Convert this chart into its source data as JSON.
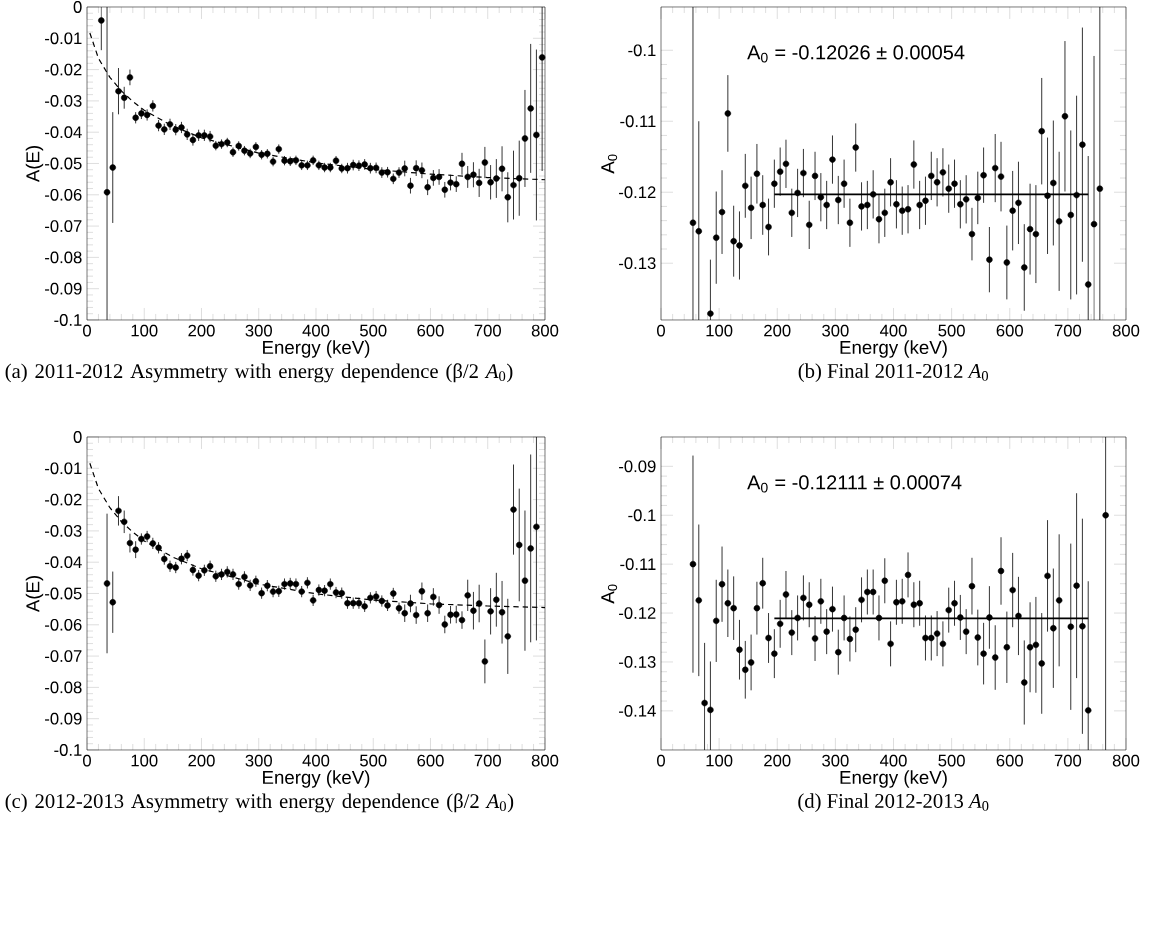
{
  "chart_data": [
    {
      "type": "scatter",
      "title": "(a) 2011-2012 Asymmetry with energy dependence (β/2 *A*$_{0}$)",
      "xlabel": "Energy (keV)",
      "ylabel": "A(E)",
      "xlim": [
        0,
        800
      ],
      "xticks": [
        0,
        100,
        200,
        300,
        400,
        500,
        600,
        700,
        800
      ],
      "ylim": [
        -0.1,
        0
      ],
      "yticks": [
        -0.1,
        -0.09,
        -0.08,
        -0.07,
        -0.06,
        -0.05,
        -0.04,
        -0.03,
        -0.02,
        -0.01,
        0
      ],
      "marker": "circle",
      "series": [
        {
          "type": "scatter",
          "color": "#000000",
          "x": [
            25,
            35,
            45,
            55,
            65,
            75,
            85,
            95,
            105,
            115,
            125,
            135,
            145,
            155,
            165,
            175,
            185,
            195,
            205,
            215,
            225,
            235,
            245,
            255,
            265,
            275,
            285,
            295,
            305,
            315,
            325,
            335,
            345,
            355,
            365,
            375,
            385,
            395,
            405,
            415,
            425,
            435,
            445,
            455,
            465,
            475,
            485,
            495,
            505,
            515,
            525,
            535,
            545,
            555,
            565,
            575,
            585,
            595,
            605,
            615,
            625,
            635,
            645,
            655,
            665,
            675,
            685,
            695,
            705,
            715,
            725,
            735,
            745,
            755,
            765,
            775,
            785,
            795
          ],
          "values": [
            -0.0043,
            -0.0592,
            -0.0513,
            -0.0269,
            -0.029,
            -0.0225,
            -0.0354,
            -0.034,
            -0.0345,
            -0.0316,
            -0.0379,
            -0.0391,
            -0.0375,
            -0.0392,
            -0.0385,
            -0.0407,
            -0.0425,
            -0.041,
            -0.041,
            -0.0414,
            -0.0443,
            -0.0438,
            -0.0433,
            -0.0464,
            -0.0444,
            -0.0459,
            -0.0468,
            -0.0447,
            -0.0472,
            -0.0469,
            -0.0494,
            -0.0454,
            -0.0491,
            -0.0493,
            -0.049,
            -0.0506,
            -0.0506,
            -0.049,
            -0.0506,
            -0.0513,
            -0.0513,
            -0.0491,
            -0.0516,
            -0.0515,
            -0.0505,
            -0.0507,
            -0.0503,
            -0.0515,
            -0.0514,
            -0.0529,
            -0.0528,
            -0.0549,
            -0.0529,
            -0.0516,
            -0.0571,
            -0.0515,
            -0.0522,
            -0.0576,
            -0.0546,
            -0.0543,
            -0.0584,
            -0.0561,
            -0.0566,
            -0.0501,
            -0.0543,
            -0.0536,
            -0.0562,
            -0.0497,
            -0.056,
            -0.0548,
            -0.0517,
            -0.0608,
            -0.0569,
            -0.0547,
            -0.042,
            -0.0324,
            -0.0409,
            -0.0161
          ],
          "errors": [
            [
              -0.0138,
              0
            ],
            [
              -0.1,
              0
            ],
            0.0177,
            0.0074,
            0.0035,
            0.0025,
            0.0018,
            0.0018,
            0.0018,
            0.0018,
            0.0018,
            0.0018,
            0.0018,
            0.0018,
            0.0018,
            0.0018,
            0.0018,
            0.0018,
            0.0018,
            0.0018,
            0.0015,
            0.0015,
            0.0015,
            0.0015,
            0.0015,
            0.0015,
            0.0015,
            0.0015,
            0.0015,
            0.0015,
            0.0015,
            0.0015,
            0.0015,
            0.0015,
            0.0015,
            0.0015,
            0.0015,
            0.0015,
            0.0015,
            0.0015,
            0.0015,
            0.0015,
            0.0015,
            0.0017,
            0.0017,
            0.0017,
            0.0017,
            0.0017,
            0.0017,
            0.0017,
            0.0017,
            0.0017,
            0.0017,
            0.0025,
            0.0025,
            0.0025,
            0.0025,
            0.0025,
            0.0025,
            0.0025,
            0.0025,
            0.0025,
            0.0025,
            0.0035,
            0.0035,
            0.004,
            0.0045,
            0.005,
            0.0055,
            0.0062,
            0.0072,
            0.008,
            0.011,
            0.012,
            0.0155,
            0.0206,
            0.0273,
            [
              -0.0524,
              0
            ]
          ]
        },
        {
          "type": "line",
          "color": "#000000",
          "line_style": "dashed",
          "x": [
            5,
            20,
            40,
            60,
            80,
            100,
            150,
            200,
            300,
            400,
            500,
            600,
            700,
            800
          ],
          "values": [
            -0.0083,
            -0.0164,
            -0.0225,
            -0.0268,
            -0.0302,
            -0.033,
            -0.0381,
            -0.0418,
            -0.0467,
            -0.0498,
            -0.0519,
            -0.0534,
            -0.0545,
            -0.0552
          ],
          "marker": "none"
        }
      ]
    },
    {
      "type": "scatter",
      "title": "(b) Final 2011-2012 *A*$_{0}$",
      "xlabel": "Energy (keV)",
      "ylabel": "A$_{0}$",
      "xlim": [
        0,
        800
      ],
      "xticks": [
        0,
        100,
        200,
        300,
        400,
        500,
        600,
        700,
        800
      ],
      "ylim": [
        -0.138,
        -0.0939
      ],
      "yticks": [
        -0.13,
        -0.12,
        -0.11,
        -0.1
      ],
      "marker": "circle",
      "annotations": [
        "A$_{0}$ = -0.12026 ± 0.00054"
      ],
      "series": [
        {
          "type": "scatter",
          "color": "#000000",
          "x": [
            55,
            65,
            85,
            95,
            105,
            115,
            125,
            135,
            145,
            155,
            165,
            175,
            185,
            195,
            205,
            215,
            225,
            235,
            245,
            255,
            265,
            275,
            285,
            295,
            305,
            315,
            325,
            335,
            345,
            355,
            365,
            375,
            385,
            395,
            405,
            415,
            425,
            435,
            445,
            455,
            465,
            475,
            485,
            495,
            505,
            515,
            525,
            535,
            545,
            555,
            565,
            575,
            585,
            595,
            605,
            615,
            625,
            635,
            645,
            655,
            665,
            675,
            685,
            695,
            705,
            715,
            725,
            735,
            745,
            755
          ],
          "values": [
            -0.1243,
            -0.1255,
            -0.1371,
            -0.1264,
            -0.1228,
            -0.1089,
            -0.1269,
            -0.1275,
            -0.1191,
            -0.1222,
            -0.1174,
            -0.1218,
            -0.1249,
            -0.1188,
            -0.1171,
            -0.116,
            -0.1229,
            -0.1201,
            -0.1173,
            -0.1246,
            -0.1177,
            -0.1207,
            -0.1218,
            -0.1154,
            -0.1211,
            -0.1188,
            -0.1243,
            -0.1137,
            -0.122,
            -0.1218,
            -0.1203,
            -0.1238,
            -0.1229,
            -0.1186,
            -0.1217,
            -0.1226,
            -0.1224,
            -0.1161,
            -0.1218,
            -0.1212,
            -0.1177,
            -0.1186,
            -0.1172,
            -0.1195,
            -0.1188,
            -0.1217,
            -0.121,
            -0.1259,
            -0.1208,
            -0.1176,
            -0.1295,
            -0.1166,
            -0.1178,
            -0.1299,
            -0.1226,
            -0.1215,
            -0.1306,
            -0.1252,
            -0.1259,
            -0.1114,
            -0.1205,
            -0.1187,
            -0.1241,
            -0.1093,
            -0.1232,
            -0.1204,
            -0.1133,
            -0.133,
            -0.1245,
            -0.1195
          ],
          "errors": [
            [
              -0.138,
              -0.0939
            ],
            [
              -0.138,
              -0.11
            ],
            [
              -0.138,
              -0.1295
            ],
            0.0065,
            0.0059,
            0.0054,
            0.005,
            0.0048,
            0.0045,
            0.0044,
            0.0042,
            0.0042,
            0.004,
            0.0034,
            0.0034,
            0.0034,
            0.0034,
            0.0034,
            0.0034,
            0.0034,
            0.0034,
            0.0034,
            0.0034,
            0.0034,
            0.0034,
            0.0034,
            0.0034,
            0.0034,
            0.0034,
            0.0034,
            0.0034,
            0.0034,
            0.0034,
            0.0034,
            0.0034,
            0.0034,
            0.0034,
            0.0034,
            0.0034,
            0.0034,
            0.0034,
            0.0034,
            0.0034,
            0.0034,
            0.0034,
            0.0034,
            0.0034,
            0.0037,
            0.0037,
            0.0039,
            0.0046,
            0.0048,
            0.0049,
            0.0052,
            0.0056,
            0.0058,
            0.0061,
            0.0064,
            0.0069,
            0.0075,
            0.0082,
            0.0088,
            0.0098,
            0.0106,
            0.0119,
            0.014,
            0.0165,
            [
              -0.138,
              -0.1149
            ],
            [
              -0.138,
              -0.1008
            ],
            [
              -0.138,
              -0.0939
            ]
          ]
        },
        {
          "type": "line",
          "color": "#000000",
          "line_style": "solid",
          "x": [
            195,
            735
          ],
          "values": [
            -0.1203,
            -0.1203
          ],
          "marker": "none"
        }
      ]
    },
    {
      "type": "scatter",
      "title": "(c) 2012-2013 Asymmetry with energy dependence (β/2 *A*$_{0}$)",
      "xlabel": "Energy (keV)",
      "ylabel": "A(E)",
      "xlim": [
        0,
        800
      ],
      "xticks": [
        0,
        100,
        200,
        300,
        400,
        500,
        600,
        700,
        800
      ],
      "ylim": [
        -0.1,
        0
      ],
      "yticks": [
        -0.1,
        -0.09,
        -0.08,
        -0.07,
        -0.06,
        -0.05,
        -0.04,
        -0.03,
        -0.02,
        -0.01,
        0
      ],
      "marker": "circle",
      "series": [
        {
          "type": "scatter",
          "color": "#000000",
          "x": [
            35,
            45,
            55,
            65,
            75,
            85,
            95,
            105,
            115,
            125,
            135,
            145,
            155,
            165,
            175,
            185,
            195,
            205,
            215,
            225,
            235,
            245,
            255,
            265,
            275,
            285,
            295,
            305,
            315,
            325,
            335,
            345,
            355,
            365,
            375,
            385,
            395,
            405,
            415,
            425,
            435,
            445,
            455,
            465,
            475,
            485,
            495,
            505,
            515,
            525,
            535,
            545,
            555,
            565,
            575,
            585,
            595,
            605,
            615,
            625,
            635,
            645,
            655,
            665,
            675,
            685,
            695,
            705,
            715,
            725,
            735,
            745,
            755,
            765,
            775,
            785
          ],
          "values": [
            -0.0468,
            -0.0528,
            -0.0236,
            -0.0271,
            -0.0339,
            -0.036,
            -0.0326,
            -0.0318,
            -0.034,
            -0.0354,
            -0.039,
            -0.0413,
            -0.0417,
            -0.0389,
            -0.0379,
            -0.0425,
            -0.0443,
            -0.0426,
            -0.0413,
            -0.0445,
            -0.0439,
            -0.0431,
            -0.0439,
            -0.047,
            -0.0447,
            -0.0474,
            -0.0461,
            -0.0499,
            -0.0475,
            -0.0494,
            -0.0493,
            -0.047,
            -0.0468,
            -0.047,
            -0.0494,
            -0.0466,
            -0.0522,
            -0.0489,
            -0.0491,
            -0.047,
            -0.0497,
            -0.0499,
            -0.0531,
            -0.0531,
            -0.0531,
            -0.0541,
            -0.0514,
            -0.051,
            -0.0524,
            -0.0538,
            -0.05,
            -0.0547,
            -0.0563,
            -0.0532,
            -0.0569,
            -0.0493,
            -0.0563,
            -0.0511,
            -0.0537,
            -0.0599,
            -0.0568,
            -0.0567,
            -0.0585,
            -0.0506,
            -0.0555,
            -0.0532,
            -0.0717,
            -0.0557,
            -0.052,
            -0.056,
            -0.0637,
            -0.0232,
            -0.0345,
            -0.0459,
            -0.0356,
            -0.0287
          ],
          "errors": [
            0.0223,
            0.0098,
            0.0047,
            0.0036,
            0.003,
            0.0027,
            0.0018,
            0.0018,
            0.0018,
            0.0018,
            0.0018,
            0.0018,
            0.0018,
            0.0018,
            0.0018,
            0.0018,
            0.0018,
            0.0018,
            0.0018,
            0.0018,
            0.0018,
            0.0018,
            0.0018,
            0.0018,
            0.0018,
            0.0018,
            0.0018,
            0.0018,
            0.0018,
            0.0018,
            0.0018,
            0.0018,
            0.0018,
            0.0018,
            0.0018,
            0.0018,
            0.0018,
            0.0018,
            0.0018,
            0.0018,
            0.0018,
            0.0018,
            0.0018,
            0.0018,
            0.0018,
            0.0018,
            0.0018,
            0.0018,
            0.0018,
            0.0018,
            0.0018,
            0.0018,
            0.0028,
            0.0028,
            0.0028,
            0.0028,
            0.0028,
            0.0028,
            0.0028,
            0.0028,
            0.0028,
            0.0028,
            0.0028,
            0.005,
            0.006,
            0.006,
            0.007,
            0.0074,
            0.0086,
            0.01,
            0.012,
            0.0144,
            0.018,
            0.0224,
            0.03,
            [
              -0.065,
              0
            ]
          ]
        },
        {
          "type": "line",
          "color": "#000000",
          "line_style": "dashed",
          "x": [
            5,
            20,
            40,
            60,
            80,
            100,
            150,
            200,
            300,
            400,
            500,
            600,
            700,
            800
          ],
          "values": [
            -0.0084,
            -0.0165,
            -0.0226,
            -0.027,
            -0.0304,
            -0.0332,
            -0.0384,
            -0.0421,
            -0.047,
            -0.0501,
            -0.0521,
            -0.0533,
            -0.054,
            -0.0545
          ],
          "marker": "none"
        }
      ]
    },
    {
      "type": "scatter",
      "title": "(d) Final 2012-2013 *A*$_{0}$",
      "xlabel": "Energy (keV)",
      "ylabel": "A$_{0}$",
      "xlim": [
        0,
        800
      ],
      "xticks": [
        0,
        100,
        200,
        300,
        400,
        500,
        600,
        700,
        800
      ],
      "ylim": [
        -0.148,
        -0.084
      ],
      "yticks": [
        -0.14,
        -0.13,
        -0.12,
        -0.11,
        -0.1,
        -0.09
      ],
      "marker": "circle",
      "annotations": [
        "A$_{0}$ = -0.12111 ± 0.00074"
      ],
      "series": [
        {
          "type": "scatter",
          "color": "#000000",
          "x": [
            55,
            65,
            75,
            85,
            95,
            105,
            115,
            125,
            135,
            145,
            155,
            165,
            175,
            185,
            195,
            205,
            215,
            225,
            235,
            245,
            255,
            265,
            275,
            285,
            295,
            305,
            315,
            325,
            335,
            345,
            355,
            365,
            375,
            385,
            395,
            405,
            415,
            425,
            435,
            445,
            455,
            465,
            475,
            485,
            495,
            505,
            515,
            525,
            535,
            545,
            555,
            565,
            575,
            585,
            595,
            605,
            615,
            625,
            635,
            645,
            655,
            665,
            675,
            685,
            705,
            715,
            725,
            735,
            765
          ],
          "values": [
            -0.11,
            -0.1174,
            -0.1384,
            -0.1398,
            -0.1216,
            -0.1141,
            -0.118,
            -0.119,
            -0.1275,
            -0.1316,
            -0.1301,
            -0.119,
            -0.1139,
            -0.1251,
            -0.1283,
            -0.1222,
            -0.1162,
            -0.124,
            -0.121,
            -0.1169,
            -0.1183,
            -0.1252,
            -0.1176,
            -0.1238,
            -0.1192,
            -0.128,
            -0.121,
            -0.1253,
            -0.1234,
            -0.1173,
            -0.1157,
            -0.1157,
            -0.121,
            -0.1134,
            -0.1263,
            -0.1178,
            -0.1176,
            -0.1122,
            -0.1183,
            -0.118,
            -0.1251,
            -0.1251,
            -0.1242,
            -0.1263,
            -0.1194,
            -0.118,
            -0.1209,
            -0.1238,
            -0.1145,
            -0.125,
            -0.1283,
            -0.1209,
            -0.1291,
            -0.1114,
            -0.127,
            -0.1153,
            -0.1206,
            -0.1342,
            -0.127,
            -0.1265,
            -0.1303,
            -0.1124,
            -0.1231,
            -0.1174,
            -0.1228,
            -0.1144,
            -0.1227,
            -0.1399,
            -0.1
          ],
          "errors": [
            0.0222,
            0.0155,
            [
              -0.148,
              -0.1261
            ],
            [
              -0.148,
              -0.1299
            ],
            0.0084,
            0.0077,
            0.0069,
            0.0065,
            0.0061,
            0.0059,
            0.0057,
            0.0054,
            0.0052,
            0.0051,
            0.005,
            0.0049,
            0.0048,
            0.0046,
            0.0046,
            0.0046,
            0.0046,
            0.0046,
            0.0046,
            0.0046,
            0.0046,
            0.0046,
            0.0046,
            0.0046,
            0.0046,
            0.0046,
            0.0046,
            0.0046,
            0.0046,
            0.0046,
            0.0046,
            0.0046,
            0.0046,
            0.0046,
            0.0046,
            0.0046,
            0.0046,
            0.0046,
            0.0046,
            0.0046,
            0.0046,
            0.0046,
            0.0046,
            0.0046,
            0.0058,
            0.0057,
            0.0063,
            0.0064,
            0.0066,
            0.0069,
            0.0073,
            0.0076,
            0.008,
            0.0086,
            0.0092,
            0.0098,
            0.0103,
            0.0114,
            0.0122,
            0.0135,
            0.017,
            0.0189,
            0.022,
            [
              -0.148,
              -0.1135
            ],
            [
              -0.148,
              -0.084
            ]
          ]
        },
        {
          "type": "line",
          "color": "#000000",
          "line_style": "solid",
          "x": [
            195,
            735
          ],
          "values": [
            -0.1211,
            -0.1211
          ],
          "marker": "none"
        }
      ]
    }
  ]
}
